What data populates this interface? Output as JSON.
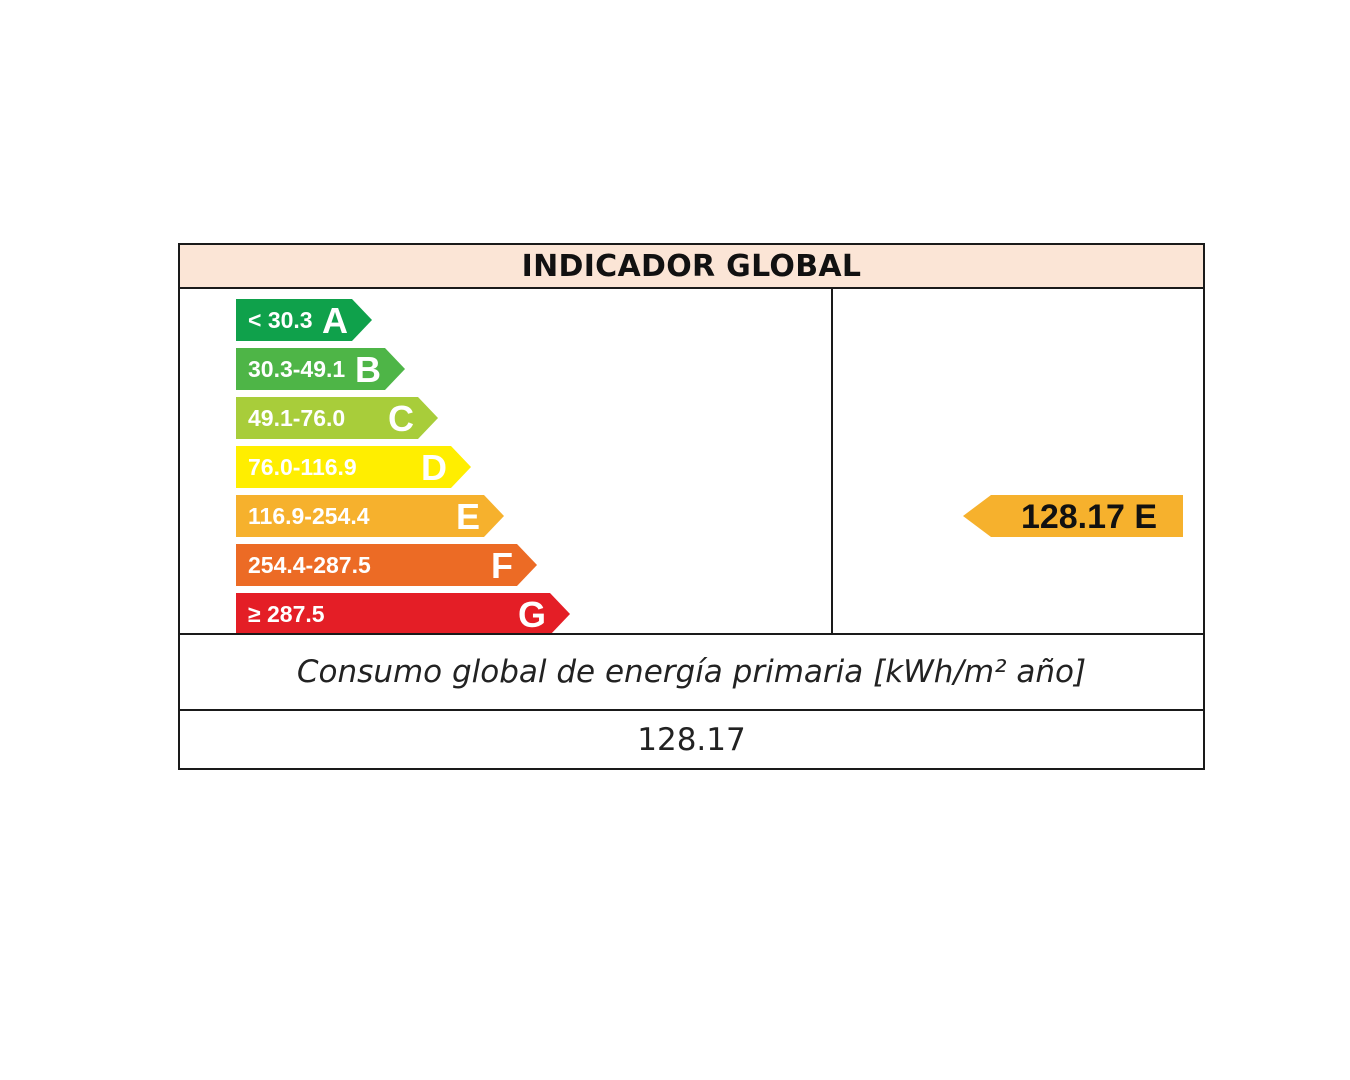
{
  "header": {
    "title": "INDICADOR GLOBAL"
  },
  "chart_data": {
    "type": "bar",
    "categories": [
      "A",
      "B",
      "C",
      "D",
      "E",
      "F",
      "G"
    ],
    "ranges": [
      "< 30.3",
      "30.3-49.1",
      "49.1-76.0",
      "76.0-116.9",
      "116.9-254.4",
      "254.4-287.5",
      "≥ 287.5"
    ],
    "colors": [
      "#0fa14b",
      "#4eb547",
      "#a8cd3a",
      "#ffee00",
      "#f6b12d",
      "#ec6b25",
      "#e41e26"
    ],
    "rating": {
      "value": "128.17",
      "letter": "E",
      "label": "128.17 E",
      "color": "#f6b12d"
    }
  },
  "footer": {
    "description": "Consumo global de energía primaria [kWh/m² año]",
    "value": "128.17"
  }
}
